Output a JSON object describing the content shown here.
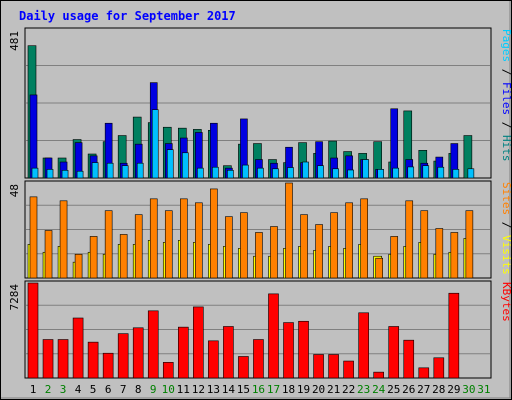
{
  "chart_data": {
    "type": "bar",
    "title": "Daily usage for September 2017",
    "days": [
      "1",
      "2",
      "3",
      "4",
      "5",
      "6",
      "7",
      "8",
      "9",
      "10",
      "11",
      "12",
      "13",
      "14",
      "15",
      "16",
      "17",
      "18",
      "19",
      "20",
      "21",
      "22",
      "23",
      "24",
      "25",
      "26",
      "27",
      "28",
      "29",
      "30",
      "31"
    ],
    "weekend_days": [
      "2",
      "3",
      "9",
      "10",
      "16",
      "17",
      "23",
      "24",
      "30",
      "31"
    ],
    "panels": [
      {
        "name": "hits-files-pages",
        "ymax_label": "481",
        "ymax": 481,
        "legend": [
          {
            "text": "Pages",
            "color": "#00ccff"
          },
          {
            "text": " / ",
            "color": "#000000"
          },
          {
            "text": "Files",
            "color": "#0000ff"
          },
          {
            "text": " / ",
            "color": "#000000"
          },
          {
            "text": "Hits",
            "color": "#008080"
          }
        ],
        "series": [
          {
            "name": "Hits",
            "color": "#008060",
            "values": [
              430,
              65,
              65,
              125,
              78,
              118,
              138,
              198,
              180,
              165,
              162,
              158,
              155,
              40,
              110,
              112,
              60,
              50,
              115,
              80,
              120,
              86,
              80,
              118,
              52,
              218,
              90,
              55,
              80,
              138,
              0
            ]
          },
          {
            "name": "Files",
            "color": "#0000e0",
            "values": [
              270,
              65,
              52,
              115,
              72,
              178,
              48,
              110,
              310,
              112,
              130,
              148,
              178,
              32,
              192,
              60,
              48,
              100,
              50,
              118,
              65,
              72,
              60,
              28,
              225,
              60,
              48,
              68,
              112,
              0,
              0
            ]
          },
          {
            "name": "Pages",
            "color": "#00c0ff",
            "values": [
              32,
              28,
              25,
              22,
              50,
              48,
              40,
              48,
              222,
              92,
              82,
              32,
              35,
              25,
              42,
              32,
              30,
              34,
              52,
              40,
              30,
              26,
              60,
              28,
              32,
              36,
              40,
              35,
              28,
              30,
              0
            ]
          }
        ]
      },
      {
        "name": "visits-sites",
        "ymax_label": "48",
        "ymax": 48,
        "legend": [
          {
            "text": "Sites",
            "color": "#ff8000"
          },
          {
            "text": " / ",
            "color": "#000000"
          },
          {
            "text": "Visits",
            "color": "#ffff00"
          }
        ],
        "series": [
          {
            "name": "Visits",
            "color": "#ffff00",
            "values": [
              17,
              13,
              16,
              8,
              13,
              12,
              17,
              17,
              19,
              18,
              19,
              18,
              17,
              16,
              15,
              11,
              11,
              15,
              16,
              14,
              16,
              15,
              17,
              11,
              12,
              16,
              18,
              12,
              13,
              20,
              0
            ]
          },
          {
            "name": "Sites",
            "color": "#ff8000",
            "values": [
              41,
              24,
              39,
              12,
              21,
              34,
              22,
              32,
              40,
              34,
              40,
              38,
              45,
              31,
              33,
              23,
              26,
              48,
              32,
              27,
              33,
              38,
              40,
              10,
              21,
              39,
              34,
              25,
              23,
              34,
              0
            ]
          }
        ]
      },
      {
        "name": "kbytes",
        "ymax_label": "7284",
        "ymax": 7284,
        "legend": [
          {
            "text": "KBytes",
            "color": "#ff0000"
          }
        ],
        "series": [
          {
            "name": "KBytes",
            "color": "#ff0000",
            "values": [
              7284,
              2950,
              2950,
              4600,
              2750,
              1900,
              3400,
              3850,
              5150,
              1200,
              3900,
              5450,
              2850,
              3950,
              1650,
              2950,
              6450,
              4250,
              4350,
              1800,
              1800,
              1300,
              5000,
              450,
              3950,
              2900,
              780,
              1550,
              6500,
              0,
              0
            ]
          }
        ]
      }
    ]
  }
}
